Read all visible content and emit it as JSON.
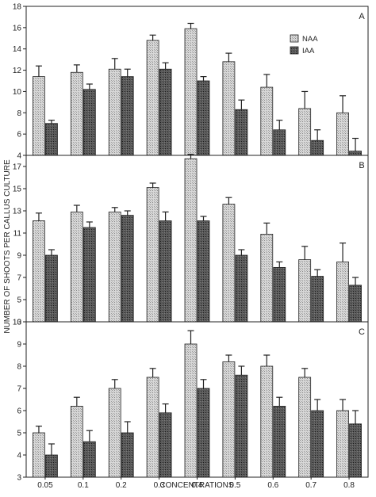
{
  "figure": {
    "ylabel": "NUMBER OF SHOOTS PER CALLUS CULTURE",
    "xlabel": "CONCENTRATIONS"
  },
  "chart_data": [
    {
      "type": "bar",
      "panel_label": "A",
      "categories": [
        "0.05",
        "0.1",
        "0.2",
        "0.3",
        "0.4",
        "0.5",
        "0.6",
        "0.7",
        "0.8"
      ],
      "ylim": [
        4,
        18
      ],
      "yticks": [
        4,
        6,
        8,
        10,
        12,
        14,
        16,
        18
      ],
      "series": [
        {
          "name": "NAA",
          "values": [
            11.4,
            11.8,
            12.1,
            14.8,
            15.9,
            12.8,
            10.4,
            8.4,
            8.0
          ],
          "errors": [
            1.0,
            0.7,
            1.0,
            0.5,
            0.5,
            0.8,
            1.2,
            1.6,
            1.6
          ]
        },
        {
          "name": "IAA",
          "values": [
            7.0,
            10.2,
            11.4,
            12.1,
            11.0,
            8.3,
            6.4,
            5.4,
            4.4
          ],
          "errors": [
            0.3,
            0.5,
            0.7,
            0.6,
            0.4,
            0.9,
            0.9,
            1.0,
            1.2
          ]
        }
      ],
      "legend": {
        "position": "top-right"
      },
      "grid": false
    },
    {
      "type": "bar",
      "panel_label": "B",
      "categories": [
        "0.05",
        "0.1",
        "0.2",
        "0.3",
        "0.4",
        "0.5",
        "0.6",
        "0.7",
        "0.8"
      ],
      "ylim": [
        3,
        18
      ],
      "yticks": [
        3,
        5,
        7,
        9,
        11,
        13,
        15,
        17
      ],
      "series": [
        {
          "name": "NAA",
          "values": [
            12.1,
            12.9,
            12.9,
            15.1,
            17.7,
            13.6,
            10.9,
            8.6,
            8.4
          ],
          "errors": [
            0.7,
            0.6,
            0.4,
            0.4,
            0.4,
            0.6,
            1.0,
            1.2,
            1.7
          ]
        },
        {
          "name": "IAA",
          "values": [
            9.0,
            11.5,
            12.6,
            12.1,
            12.1,
            9.0,
            7.9,
            7.1,
            6.3
          ],
          "errors": [
            0.5,
            0.5,
            0.4,
            0.8,
            0.4,
            0.5,
            0.5,
            0.6,
            0.7
          ]
        }
      ],
      "grid": false
    },
    {
      "type": "bar",
      "panel_label": "C",
      "categories": [
        "0.05",
        "0.1",
        "0.2",
        "0.3",
        "0.4",
        "0.5",
        "0.6",
        "0.7",
        "0.8"
      ],
      "ylim": [
        3,
        10
      ],
      "yticks": [
        3,
        4,
        5,
        6,
        7,
        8,
        9,
        10
      ],
      "series": [
        {
          "name": "NAA",
          "values": [
            5.0,
            6.2,
            7.0,
            7.5,
            9.0,
            8.2,
            8.0,
            7.5,
            6.0
          ],
          "errors": [
            0.3,
            0.4,
            0.4,
            0.4,
            0.6,
            0.3,
            0.5,
            0.4,
            0.5
          ]
        },
        {
          "name": "IAA",
          "values": [
            4.0,
            4.6,
            5.0,
            5.9,
            7.0,
            7.6,
            6.2,
            6.0,
            5.4
          ],
          "errors": [
            0.5,
            0.5,
            0.5,
            0.4,
            0.4,
            0.4,
            0.4,
            0.5,
            0.6
          ]
        }
      ],
      "grid": false
    }
  ]
}
